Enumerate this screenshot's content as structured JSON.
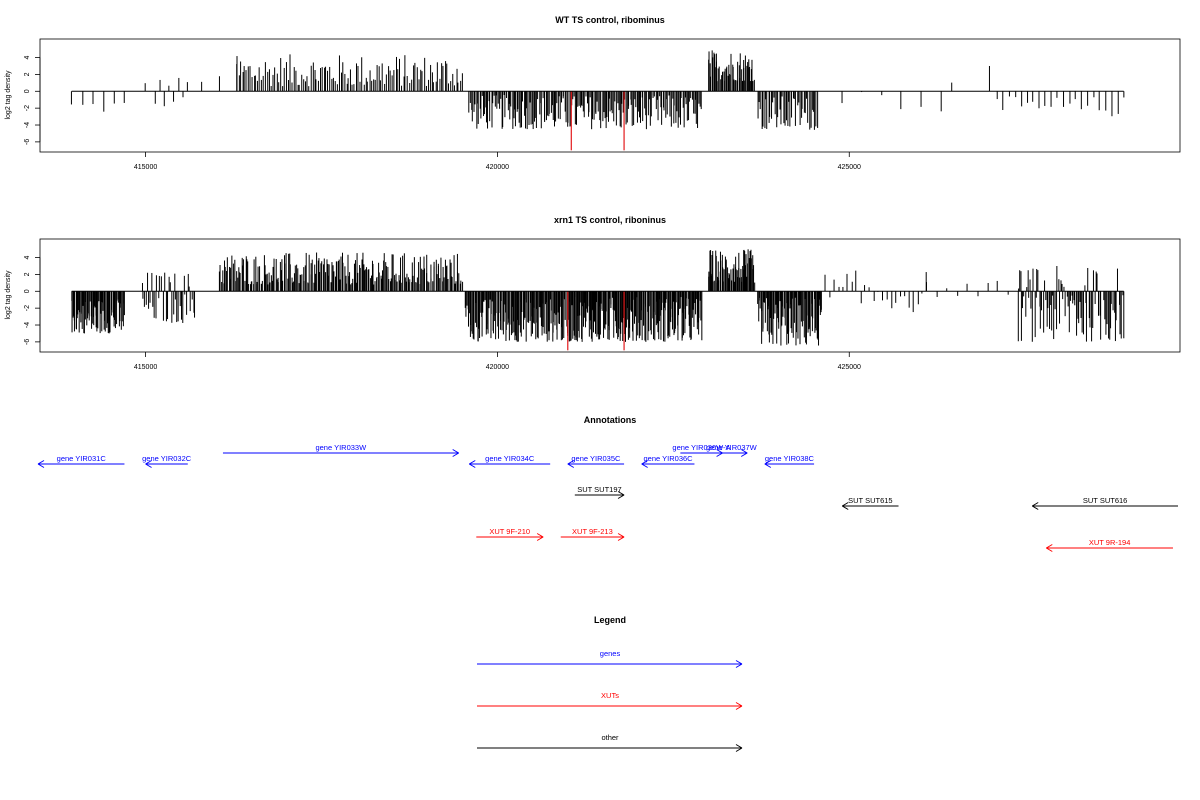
{
  "chart_data": [
    {
      "type": "bar",
      "title": "WT TS control, ribominus",
      "ylabel": "log2 tag density",
      "xlabel": "",
      "xlim": [
        413500,
        429700
      ],
      "ylim": [
        -7.2,
        6.2
      ],
      "xticks": [
        415000,
        420000,
        425000
      ],
      "xtick_labels": [
        "415000",
        "420000",
        "425000"
      ],
      "yticks": [
        -6,
        -4,
        -2,
        0,
        2,
        4
      ],
      "ytick_labels": [
        "-6",
        "-4",
        "-2",
        "0",
        "2",
        "4"
      ],
      "baseline_range": [
        413950,
        428900
      ],
      "bar_color": "#000000",
      "highlight_color": "#e31a1c",
      "highlight": [
        {
          "x": 421050,
          "y": -7.0
        },
        {
          "x": 421800,
          "y": -7.0
        }
      ],
      "segments": [
        {
          "x0": 413950,
          "x1": 414700,
          "lo": -2.6,
          "hi": -0.8,
          "n": 6
        },
        {
          "x0": 415000,
          "x1": 415600,
          "lo": -2.0,
          "hi": 2.0,
          "n": 10
        },
        {
          "x0": 415800,
          "x1": 416300,
          "lo": 0.8,
          "hi": 4.3,
          "n": 3
        },
        {
          "x0": 416300,
          "x1": 419500,
          "lo": 0.6,
          "hi": 4.4,
          "n": 120
        },
        {
          "x0": 419600,
          "x1": 422900,
          "lo": -4.5,
          "hi": -0.4,
          "n": 200
        },
        {
          "x0": 423000,
          "x1": 423650,
          "lo": 1.2,
          "hi": 5.0,
          "n": 55
        },
        {
          "x0": 423700,
          "x1": 424550,
          "lo": -4.6,
          "hi": -0.5,
          "n": 45
        },
        {
          "x0": 424900,
          "x1": 426300,
          "lo": -2.5,
          "hi": 1.0,
          "n": 6
        },
        {
          "x0": 426300,
          "x1": 426600,
          "lo": 1.0,
          "hi": 1.2,
          "n": 1
        },
        {
          "x0": 426900,
          "x1": 427100,
          "lo": 3.0,
          "hi": 3.1,
          "n": 1
        },
        {
          "x0": 427100,
          "x1": 428900,
          "lo": -3.0,
          "hi": -0.6,
          "n": 22
        }
      ]
    },
    {
      "type": "bar",
      "title": "xrn1 TS control, riboninus",
      "ylabel": "log2 tag density",
      "xlabel": "",
      "xlim": [
        413500,
        429700
      ],
      "ylim": [
        -7.2,
        6.2
      ],
      "xticks": [
        415000,
        420000,
        425000
      ],
      "xtick_labels": [
        "415000",
        "420000",
        "425000"
      ],
      "yticks": [
        -6,
        -4,
        -2,
        0,
        2,
        4
      ],
      "ytick_labels": [
        "-6",
        "-4",
        "-2",
        "0",
        "2",
        "4"
      ],
      "baseline_range": [
        413950,
        428900
      ],
      "bar_color": "#000000",
      "highlight_color": "#e31a1c",
      "highlight": [
        {
          "x": 421000,
          "y": -7.0
        },
        {
          "x": 421800,
          "y": -7.0
        }
      ],
      "segments": [
        {
          "x0": 413950,
          "x1": 414700,
          "lo": -5.0,
          "hi": -0.8,
          "n": 80
        },
        {
          "x0": 414950,
          "x1": 415700,
          "lo": -3.8,
          "hi": 2.5,
          "n": 40
        },
        {
          "x0": 416050,
          "x1": 419500,
          "lo": 0.8,
          "hi": 4.6,
          "n": 230
        },
        {
          "x0": 419550,
          "x1": 421000,
          "lo": -6.0,
          "hi": -0.8,
          "n": 140
        },
        {
          "x0": 421000,
          "x1": 422900,
          "lo": -6.0,
          "hi": -0.6,
          "n": 200
        },
        {
          "x0": 423000,
          "x1": 423650,
          "lo": 1.0,
          "hi": 5.0,
          "n": 70
        },
        {
          "x0": 423700,
          "x1": 424600,
          "lo": -6.5,
          "hi": -0.6,
          "n": 90
        },
        {
          "x0": 424600,
          "x1": 426100,
          "lo": -2.5,
          "hi": 2.5,
          "n": 25
        },
        {
          "x0": 426100,
          "x1": 427400,
          "lo": -0.7,
          "hi": 1.3,
          "n": 10
        },
        {
          "x0": 427400,
          "x1": 428900,
          "lo": -6.0,
          "hi": 3.0,
          "n": 90
        }
      ]
    }
  ],
  "annotations": {
    "title": "Annotations",
    "features": [
      {
        "label": "gene YIR031C",
        "kind": "gene",
        "strand": "-",
        "start": 413300,
        "end": 414700,
        "row": 0
      },
      {
        "label": "gene YIR032C",
        "kind": "gene",
        "strand": "-",
        "start": 415000,
        "end": 415600,
        "row": 0
      },
      {
        "label": "gene YIR033W",
        "kind": "gene",
        "strand": "+",
        "start": 416100,
        "end": 419450,
        "row": -1
      },
      {
        "label": "gene YIR034C",
        "kind": "gene",
        "strand": "-",
        "start": 419600,
        "end": 420750,
        "row": 0
      },
      {
        "label": "gene YIR035C",
        "kind": "gene",
        "strand": "-",
        "start": 421000,
        "end": 421800,
        "row": 0
      },
      {
        "label": "gene YIR036C",
        "kind": "gene",
        "strand": "-",
        "start": 422050,
        "end": 422800,
        "row": 0
      },
      {
        "label": "gene YIR036W-A",
        "kind": "gene",
        "strand": "+",
        "start": 422600,
        "end": 423200,
        "row": -1
      },
      {
        "label": "gene YIR037W",
        "kind": "gene",
        "strand": "+",
        "start": 423100,
        "end": 423550,
        "row": -1
      },
      {
        "label": "gene YIR038C",
        "kind": "gene",
        "strand": "-",
        "start": 423800,
        "end": 424500,
        "row": 0
      },
      {
        "label": "SUT SUT197",
        "kind": "other",
        "strand": "+",
        "start": 421100,
        "end": 421800,
        "row": 1
      },
      {
        "label": "SUT SUT615",
        "kind": "other",
        "strand": "-",
        "start": 424900,
        "end": 425700,
        "row": 2
      },
      {
        "label": "SUT SUT616",
        "kind": "other",
        "strand": "-",
        "start": 427600,
        "end": 429700,
        "row": 2
      },
      {
        "label": "XUT 9F-210",
        "kind": "xut",
        "strand": "+",
        "start": 419700,
        "end": 420650,
        "row": 3
      },
      {
        "label": "XUT 9F-213",
        "kind": "xut",
        "strand": "+",
        "start": 420900,
        "end": 421800,
        "row": 3
      },
      {
        "label": "XUT 9R-194",
        "kind": "xut",
        "strand": "-",
        "start": 427800,
        "end": 429600,
        "row": 4
      }
    ]
  },
  "legend": {
    "title": "Legend",
    "items": [
      {
        "label": "genes",
        "kind": "gene"
      },
      {
        "label": "XUTs",
        "kind": "xut"
      },
      {
        "label": "other",
        "kind": "other"
      }
    ]
  },
  "colors": {
    "gene": "#0000ff",
    "xut": "#ff0000",
    "other": "#000000",
    "axis": "#000000"
  }
}
